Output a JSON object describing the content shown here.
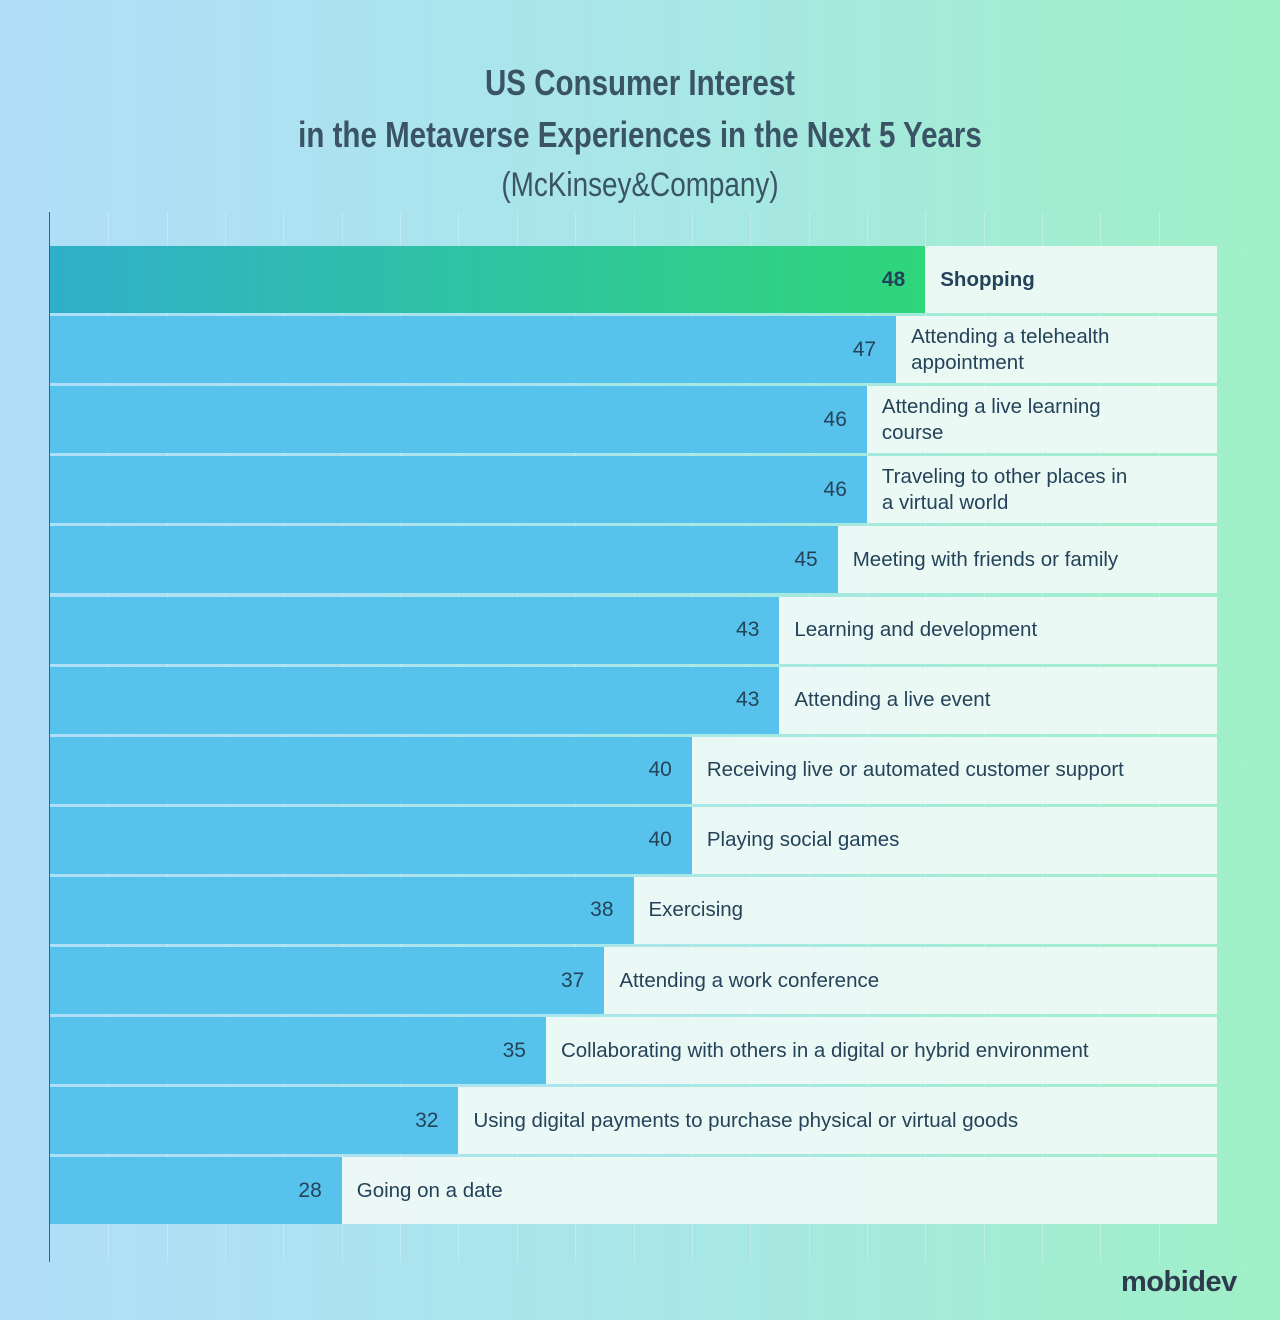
{
  "chart_data": {
    "type": "bar",
    "orientation": "horizontal",
    "title": "US Consumer Interest",
    "title_line2": "in the Metaverse Experiences in the Next 5 Years",
    "subtitle": "(McKinsey&Company)",
    "xlim": [
      18,
      58
    ],
    "grid": true,
    "categories": [
      "Shopping",
      "Attending a telehealth appointment",
      "Attending a live learning course",
      "Traveling to other places in a virtual world",
      "Meeting with friends or family",
      "Learning and development",
      "Attending a live event",
      "Receiving live or automated customer support",
      "Playing social games",
      "Exercising",
      "Attending a work conference",
      "Collaborating with others in a digital or hybrid environment",
      "Using digital payments to purchase physical or virtual goods",
      "Going on a date"
    ],
    "values": [
      48,
      47,
      46,
      46,
      45,
      43,
      43,
      40,
      40,
      38,
      37,
      35,
      32,
      28
    ],
    "highlight_index": 0,
    "colors": {
      "bar": "#57c3ec",
      "highlight_start": "#2fb0c9",
      "highlight_end": "#2fd67a",
      "text": "#24435a"
    }
  },
  "logo": "mobidev"
}
